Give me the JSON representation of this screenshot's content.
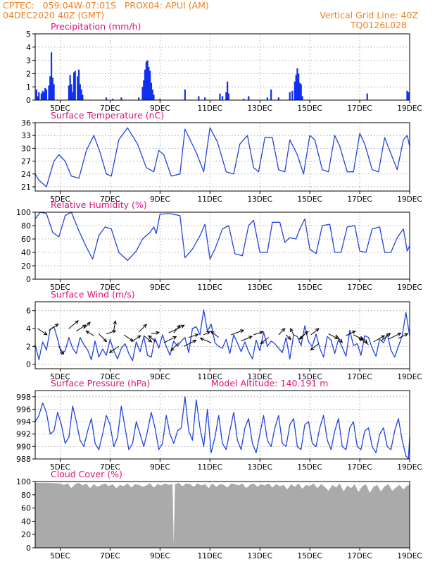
{
  "header": {
    "line1_left": "CPTEC:   059:04W-07:01S   PROX04: APUI (AM)",
    "line2_left": "04DEC2020 40Z (GMT)",
    "line1_right": "Vertical Grid Line: 40Z",
    "line2_right": "TQ0126L028"
  },
  "colors": {
    "header": "#f08020",
    "panel_title": "#e0107a",
    "precip_bars": "#1030f0",
    "series_line": "#2244dd",
    "cloud_fill": "#aaaaaa",
    "arrow": "#000000",
    "frame": "#000000",
    "grid": "#999999"
  },
  "x_axis": {
    "range": [
      4.0,
      19.0
    ],
    "ticks": [
      5,
      7,
      9,
      11,
      13,
      15,
      17,
      19
    ],
    "tick_labels": [
      "5DEC",
      "7DEC",
      "9DEC",
      "11DEC",
      "13DEC",
      "15DEC",
      "17DEC",
      "19DEC"
    ]
  },
  "chart_data": [
    {
      "type": "bar",
      "title": "Precipitation (mm/h)",
      "ylim": [
        0,
        5
      ],
      "yticks": [
        0,
        1,
        2,
        3,
        4,
        5
      ],
      "grid": true,
      "x": [
        4.05,
        4.1,
        4.15,
        4.25,
        4.3,
        4.35,
        4.4,
        4.45,
        4.55,
        4.6,
        4.65,
        4.7,
        4.75,
        5.35,
        5.4,
        5.45,
        5.5,
        5.55,
        5.6,
        5.7,
        5.75,
        5.8,
        5.85,
        5.9,
        6.85,
        7.1,
        7.45,
        8.15,
        8.3,
        8.35,
        8.4,
        8.45,
        8.5,
        8.55,
        8.6,
        8.65,
        8.7,
        8.75,
        9.0,
        10.0,
        10.55,
        10.8,
        11.4,
        11.5,
        11.65,
        11.7,
        11.75,
        12.35,
        12.55,
        13.3,
        13.45,
        13.75,
        14.2,
        14.3,
        14.4,
        14.45,
        14.5,
        14.55,
        14.6,
        14.65,
        14.7,
        17.3,
        18.9,
        18.95
      ],
      "values": [
        0.8,
        0.3,
        0.6,
        0.5,
        0.7,
        0.6,
        0.9,
        0.8,
        1.1,
        1.8,
        3.6,
        1.7,
        1.2,
        1.1,
        1.9,
        1.2,
        0.6,
        2.1,
        2.2,
        1.8,
        2.3,
        1.2,
        0.8,
        0.4,
        0.2,
        0.1,
        0.2,
        0.2,
        1.0,
        1.5,
        2.3,
        2.9,
        3.0,
        2.5,
        2.2,
        1.3,
        0.8,
        0.4,
        0.1,
        0.8,
        0.3,
        0.2,
        0.5,
        0.3,
        0.6,
        1.4,
        0.5,
        0.1,
        0.3,
        0.2,
        0.8,
        0.2,
        0.6,
        0.7,
        1.4,
        1.9,
        2.4,
        2.0,
        1.3,
        1.2,
        0.3,
        0.5,
        0.7,
        0.6
      ]
    },
    {
      "type": "line",
      "title": "Surface Temperature (nC)",
      "ylim": [
        20,
        36
      ],
      "yticks": [
        21,
        24,
        27,
        30,
        33,
        36
      ],
      "grid": true,
      "x": [
        4.0,
        4.15,
        4.45,
        4.75,
        4.95,
        5.2,
        5.45,
        5.75,
        6.05,
        6.35,
        6.6,
        6.85,
        7.05,
        7.35,
        7.7,
        8.1,
        8.45,
        8.75,
        8.95,
        9.15,
        9.45,
        9.8,
        10.0,
        10.45,
        10.75,
        11.0,
        11.3,
        11.65,
        11.95,
        12.2,
        12.5,
        12.75,
        12.95,
        13.2,
        13.5,
        13.75,
        14.0,
        14.2,
        14.5,
        14.75,
        15.0,
        15.2,
        15.5,
        15.75,
        16.0,
        16.2,
        16.5,
        16.75,
        17.0,
        17.2,
        17.5,
        17.75,
        18.0,
        18.2,
        18.5,
        18.75,
        18.9,
        19.0
      ],
      "values": [
        24.0,
        22.5,
        21.0,
        27.0,
        28.5,
        27.0,
        23.5,
        23.0,
        29.5,
        33.0,
        29.0,
        24.0,
        23.5,
        32.0,
        34.8,
        31.0,
        25.5,
        24.5,
        29.5,
        28.5,
        23.5,
        24.0,
        34.5,
        29.0,
        24.5,
        34.8,
        31.5,
        24.5,
        24.0,
        31.0,
        33.0,
        25.5,
        24.5,
        32.5,
        32.5,
        25.0,
        24.5,
        32.0,
        28.5,
        24.0,
        33.0,
        32.0,
        25.0,
        24.5,
        33.0,
        30.5,
        24.5,
        24.5,
        33.5,
        31.0,
        25.0,
        24.5,
        32.5,
        29.5,
        25.0,
        32.0,
        33.0,
        30.5
      ]
    },
    {
      "type": "line",
      "title": "Relative Humidity (%)",
      "ylim": [
        0,
        100
      ],
      "yticks": [
        0,
        20,
        40,
        60,
        80,
        100
      ],
      "grid": true,
      "x": [
        4.0,
        4.2,
        4.45,
        4.7,
        4.95,
        5.2,
        5.45,
        5.75,
        6.05,
        6.3,
        6.55,
        6.8,
        7.05,
        7.35,
        7.7,
        8.05,
        8.3,
        8.6,
        8.75,
        8.85,
        9.0,
        9.4,
        9.8,
        10.0,
        10.3,
        10.6,
        10.8,
        11.0,
        11.2,
        11.5,
        11.75,
        12.0,
        12.3,
        12.55,
        12.75,
        13.0,
        13.3,
        13.5,
        13.8,
        14.0,
        14.2,
        14.45,
        14.6,
        14.8,
        15.0,
        15.25,
        15.5,
        15.8,
        16.0,
        16.25,
        16.5,
        16.8,
        17.0,
        17.25,
        17.5,
        17.8,
        18.0,
        18.25,
        18.5,
        18.75,
        18.9,
        19.0
      ],
      "values": [
        90.0,
        100.0,
        98.0,
        70.0,
        63.0,
        95.0,
        100.0,
        72.0,
        48.0,
        30.0,
        65.0,
        78.0,
        75.0,
        40.0,
        28.0,
        42.0,
        60.0,
        70.0,
        78.0,
        68.0,
        97.0,
        98.0,
        95.0,
        32.0,
        45.0,
        65.0,
        82.0,
        30.0,
        45.0,
        75.0,
        80.0,
        38.0,
        35.0,
        80.0,
        88.0,
        40.0,
        40.0,
        85.0,
        85.0,
        55.0,
        62.0,
        60.0,
        75.0,
        90.0,
        45.0,
        38.0,
        80.0,
        82.0,
        40.0,
        40.0,
        78.0,
        80.0,
        42.0,
        40.0,
        75.0,
        78.0,
        40.0,
        40.0,
        62.0,
        75.0,
        42.0,
        50.0
      ]
    },
    {
      "type": "line",
      "title": "Surface Wind (m/s)",
      "ylim": [
        -0.5,
        7
      ],
      "yticks": [
        0,
        2,
        4,
        6
      ],
      "grid": true,
      "x": [
        4.0,
        4.15,
        4.3,
        4.45,
        4.6,
        4.75,
        4.9,
        5.05,
        5.2,
        5.35,
        5.5,
        5.65,
        5.8,
        5.95,
        6.1,
        6.25,
        6.4,
        6.55,
        6.7,
        6.85,
        7.0,
        7.15,
        7.3,
        7.45,
        7.6,
        7.75,
        7.9,
        8.05,
        8.2,
        8.35,
        8.5,
        8.65,
        8.8,
        8.95,
        9.1,
        9.25,
        9.4,
        9.55,
        9.7,
        9.85,
        10.0,
        10.15,
        10.3,
        10.45,
        10.6,
        10.75,
        10.9,
        11.05,
        11.2,
        11.35,
        11.5,
        11.65,
        11.8,
        11.95,
        12.1,
        12.25,
        12.4,
        12.55,
        12.7,
        12.85,
        13.0,
        13.15,
        13.3,
        13.45,
        13.6,
        13.75,
        13.9,
        14.05,
        14.2,
        14.35,
        14.5,
        14.65,
        14.8,
        14.95,
        15.1,
        15.25,
        15.4,
        15.55,
        15.7,
        15.85,
        16.0,
        16.15,
        16.3,
        16.45,
        16.6,
        16.75,
        16.9,
        17.05,
        17.2,
        17.35,
        17.5,
        17.65,
        17.8,
        17.95,
        18.1,
        18.25,
        18.4,
        18.55,
        18.7,
        18.85,
        19.0
      ],
      "values": [
        2.2,
        0.5,
        2.5,
        1.6,
        3.9,
        4.2,
        2.8,
        1.1,
        1.5,
        3.0,
        1.8,
        1.2,
        3.0,
        2.2,
        1.6,
        0.5,
        2.6,
        0.8,
        1.7,
        1.0,
        2.8,
        1.5,
        0.6,
        1.8,
        2.3,
        1.2,
        0.4,
        2.5,
        1.4,
        3.1,
        1.0,
        0.8,
        2.9,
        1.8,
        3.3,
        2.0,
        1.0,
        2.6,
        2.0,
        2.6,
        3.0,
        1.3,
        4.0,
        4.2,
        3.3,
        6.1,
        3.7,
        4.5,
        2.4,
        2.0,
        1.8,
        2.8,
        1.2,
        3.3,
        2.4,
        1.4,
        2.5,
        1.4,
        0.6,
        2.7,
        1.5,
        3.6,
        2.0,
        2.6,
        2.3,
        1.8,
        1.3,
        3.0,
        0.6,
        3.3,
        3.1,
        2.1,
        4.3,
        2.5,
        2.0,
        3.4,
        1.8,
        0.8,
        3.1,
        2.7,
        1.2,
        2.8,
        1.9,
        0.9,
        3.8,
        2.1,
        2.3,
        1.0,
        3.2,
        3.0,
        1.8,
        0.9,
        2.8,
        2.4,
        3.4,
        1.6,
        0.8,
        2.0,
        3.2,
        5.8,
        3.2
      ]
    },
    {
      "type": "line",
      "title": "Surface Pressure (hPa)",
      "subtitle": "Model Altitude: 140.191 m",
      "ylim": [
        988,
        999
      ],
      "yticks": [
        988,
        990,
        992,
        994,
        996,
        998
      ],
      "grid": true,
      "x": [
        4.0,
        4.15,
        4.3,
        4.45,
        4.6,
        4.75,
        4.9,
        5.05,
        5.2,
        5.35,
        5.5,
        5.65,
        5.8,
        5.95,
        6.1,
        6.25,
        6.4,
        6.55,
        6.7,
        6.85,
        7.0,
        7.15,
        7.3,
        7.45,
        7.6,
        7.75,
        7.9,
        8.05,
        8.2,
        8.35,
        8.5,
        8.65,
        8.8,
        8.95,
        9.1,
        9.25,
        9.4,
        9.55,
        9.7,
        9.85,
        10.0,
        10.15,
        10.3,
        10.45,
        10.6,
        10.75,
        10.9,
        11.05,
        11.2,
        11.35,
        11.5,
        11.65,
        11.8,
        11.95,
        12.1,
        12.25,
        12.4,
        12.55,
        12.7,
        12.85,
        13.0,
        13.15,
        13.3,
        13.45,
        13.6,
        13.75,
        13.9,
        14.05,
        14.2,
        14.35,
        14.5,
        14.65,
        14.8,
        14.95,
        15.1,
        15.25,
        15.4,
        15.55,
        15.7,
        15.85,
        16.0,
        16.15,
        16.3,
        16.45,
        16.6,
        16.75,
        16.9,
        17.05,
        17.2,
        17.35,
        17.5,
        17.65,
        17.8,
        17.95,
        18.1,
        18.25,
        18.4,
        18.55,
        18.7,
        18.85,
        18.95,
        19.0
      ],
      "values": [
        994.0,
        995.0,
        997.0,
        995.5,
        992.0,
        992.5,
        995.5,
        993.5,
        990.5,
        991.5,
        996.5,
        994.0,
        991.0,
        990.0,
        992.5,
        994.5,
        990.5,
        989.5,
        992.0,
        995.0,
        993.5,
        990.0,
        991.5,
        996.5,
        993.0,
        989.5,
        990.5,
        994.0,
        992.0,
        990.0,
        992.5,
        995.5,
        993.0,
        989.5,
        990.5,
        995.0,
        992.0,
        990.5,
        992.5,
        993.0,
        998.0,
        992.5,
        991.0,
        997.5,
        993.0,
        990.0,
        996.0,
        989.0,
        991.5,
        995.0,
        990.5,
        989.5,
        992.5,
        995.5,
        991.0,
        989.5,
        993.0,
        994.5,
        990.5,
        989.0,
        992.0,
        995.0,
        991.0,
        990.0,
        993.0,
        995.0,
        990.5,
        990.0,
        993.5,
        994.5,
        990.0,
        989.5,
        993.5,
        994.0,
        990.5,
        990.0,
        993.0,
        995.0,
        991.0,
        989.5,
        992.5,
        994.5,
        990.0,
        989.5,
        993.0,
        994.0,
        990.0,
        989.5,
        992.5,
        993.0,
        990.0,
        989.0,
        992.0,
        993.0,
        990.0,
        989.5,
        992.5,
        994.5,
        991.0,
        988.5,
        988.0,
        991.5
      ]
    },
    {
      "type": "area",
      "title": "Cloud Cover (%)",
      "ylim": [
        0,
        100
      ],
      "yticks": [
        0,
        20,
        40,
        60,
        80,
        100
      ],
      "grid": true,
      "x": [
        4.0,
        4.5,
        5.0,
        5.15,
        5.3,
        5.45,
        5.6,
        5.75,
        5.9,
        6.05,
        6.2,
        6.35,
        6.5,
        6.65,
        6.8,
        6.95,
        7.1,
        7.25,
        7.4,
        7.55,
        7.7,
        7.85,
        8.0,
        8.15,
        8.3,
        8.45,
        8.6,
        8.75,
        8.9,
        9.05,
        9.2,
        9.35,
        9.5,
        9.55,
        9.6,
        9.75,
        9.9,
        10.05,
        10.2,
        10.35,
        10.5,
        10.65,
        10.8,
        10.95,
        11.1,
        11.25,
        11.4,
        11.55,
        11.7,
        11.85,
        12.0,
        12.15,
        12.3,
        12.45,
        12.6,
        12.75,
        12.9,
        13.05,
        13.2,
        13.35,
        13.5,
        13.65,
        13.8,
        13.95,
        14.1,
        14.25,
        14.4,
        14.55,
        14.7,
        14.85,
        15.0,
        15.15,
        15.3,
        15.45,
        15.6,
        15.75,
        15.9,
        16.05,
        16.2,
        16.35,
        16.5,
        16.65,
        16.8,
        16.95,
        17.1,
        17.25,
        17.4,
        17.55,
        17.7,
        17.85,
        18.0,
        18.15,
        18.3,
        18.45,
        18.6,
        18.75,
        18.9,
        19.0
      ],
      "values": [
        98,
        98,
        97,
        95,
        97,
        90,
        96,
        98,
        94,
        97,
        90,
        96,
        92,
        95,
        97,
        93,
        96,
        90,
        95,
        93,
        97,
        91,
        96,
        95,
        92,
        94,
        97,
        91,
        96,
        94,
        97,
        95,
        96,
        5,
        96,
        98,
        93,
        97,
        96,
        92,
        97,
        94,
        96,
        90,
        97,
        92,
        96,
        95,
        91,
        97,
        96,
        94,
        97,
        90,
        95,
        97,
        92,
        96,
        94,
        97,
        91,
        96,
        93,
        95,
        88,
        96,
        92,
        97,
        89,
        95,
        93,
        97,
        90,
        96,
        92,
        86,
        95,
        91,
        97,
        85,
        94,
        90,
        96,
        84,
        93,
        96,
        83,
        92,
        95,
        85,
        93,
        96,
        86,
        91,
        95,
        88,
        94,
        95
      ]
    }
  ],
  "wind_vectors": {
    "x": [
      4.1,
      4.55,
      4.95,
      5.35,
      5.65,
      5.95,
      6.35,
      6.55,
      6.85,
      7.15,
      7.35,
      7.55,
      7.85,
      8.15,
      8.35,
      8.65,
      8.85,
      9.15,
      9.35,
      9.55,
      9.75,
      9.95,
      10.15,
      10.75,
      11.05,
      11.35,
      11.85,
      12.25,
      12.75,
      13.35,
      13.75,
      14.05,
      14.35,
      14.55,
      14.85,
      15.05,
      15.35,
      15.75,
      16.05,
      16.45,
      16.75,
      17.05,
      17.35,
      17.55,
      17.85,
      18.15,
      18.55
    ],
    "y": [
      4.0,
      3.8,
      2.0,
      4.0,
      3.7,
      4.0,
      3.2,
      3.4,
      3.4,
      3.8,
      2.0,
      3.3,
      2.5,
      3.6,
      3.2,
      3.4,
      2.5,
      2.4,
      3.5,
      3.5,
      2.4,
      2.0,
      3.0,
      3.3,
      2.4,
      3.0,
      3.3,
      2.6,
      3.3,
      3.0,
      3.3,
      3.3,
      3.3,
      2.8,
      3.5,
      3.3,
      2.3,
      3.4,
      3.3,
      3.2,
      3.3,
      3.1,
      2.2,
      2.5,
      2.6,
      2.8,
      2.9
    ],
    "u": [
      0.6,
      0.6,
      0.3,
      0.6,
      0.6,
      0.4,
      -0.5,
      0.5,
      0.6,
      0.1,
      -0.6,
      0.6,
      0.6,
      0.5,
      0.5,
      0.5,
      -0.5,
      0.8,
      1.0,
      0.4,
      -0.5,
      0.8,
      0.6,
      0.4,
      -0.7,
      -0.5,
      0.8,
      0.7,
      0.6,
      -0.5,
      0.4,
      0.3,
      -0.2,
      0.6,
      -0.4,
      0.5,
      -0.5,
      0.6,
      0.4,
      0.6,
      0.6,
      0.4,
      -0.6,
      0.7,
      0.6,
      0.8,
      0.6
    ],
    "v": [
      -0.4,
      0.4,
      -0.5,
      0.5,
      0.4,
      0.4,
      0.3,
      -0.5,
      0.2,
      0.6,
      -0.4,
      -0.4,
      0.4,
      0.5,
      -0.4,
      0.1,
      0.4,
      0.4,
      0.5,
      0.5,
      -0.5,
      0.4,
      0.2,
      0.2,
      0.3,
      0.4,
      0.3,
      0.3,
      0.2,
      -0.4,
      0.4,
      -0.3,
      0.4,
      0.5,
      -0.4,
      0.4,
      -0.4,
      -0.3,
      -0.5,
      0.3,
      -0.3,
      -0.4,
      0.4,
      0.4,
      0.5,
      0.4,
      0.3
    ]
  }
}
